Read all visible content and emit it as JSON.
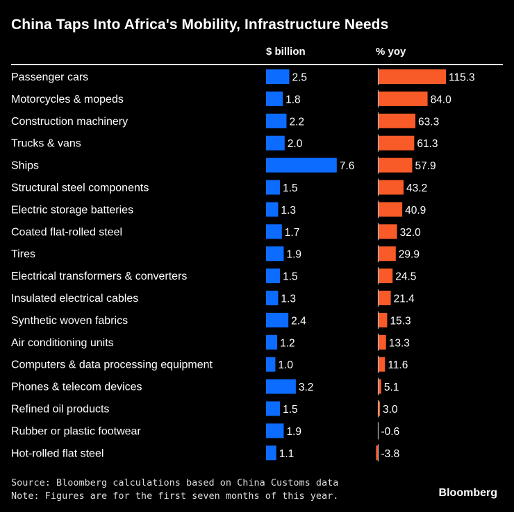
{
  "chart_data": {
    "type": "bar",
    "title": "China Taps Into Africa's Mobility, Infrastructure Needs",
    "categories": [
      "Passenger cars",
      "Motorcycles & mopeds",
      "Construction machinery",
      "Trucks & vans",
      "Ships",
      "Structural steel components",
      "Electric storage batteries",
      "Coated flat-rolled steel",
      "Tires",
      "Electrical transformers & converters",
      "Insulated electrical cables",
      "Synthetic woven fabrics",
      "Air conditioning units",
      "Computers & data processing equipment",
      "Phones & telecom devices",
      "Refined oil products",
      "Rubber or plastic footwear",
      "Hot-rolled flat steel"
    ],
    "series": [
      {
        "name": "$ billion",
        "color": "#0c6cff",
        "values": [
          2.5,
          1.8,
          2.2,
          2.0,
          7.6,
          1.5,
          1.3,
          1.7,
          1.9,
          1.5,
          1.3,
          2.4,
          1.2,
          1.0,
          3.2,
          1.5,
          1.9,
          1.1
        ]
      },
      {
        "name": "% yoy",
        "color": "#f85a28",
        "values": [
          115.3,
          84.0,
          63.3,
          61.3,
          57.9,
          43.2,
          40.9,
          32.0,
          29.9,
          24.5,
          21.4,
          15.3,
          13.3,
          11.6,
          5.1,
          3.0,
          -0.6,
          -3.8
        ]
      }
    ],
    "legend": "column headers, top",
    "grid": false
  },
  "footer": {
    "source": "Source: Bloomberg calculations based on China Customs data",
    "note": "Note: Figures are for the first seven months of this year.",
    "logo": "Bloomberg"
  }
}
